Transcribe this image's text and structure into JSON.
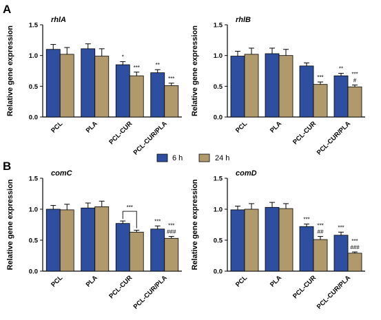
{
  "panel_labels": [
    "A",
    "B"
  ],
  "legend": {
    "items": [
      {
        "label": "6 h",
        "color": "#2e4fa0"
      },
      {
        "label": "24 h",
        "color": "#b09a6c"
      }
    ]
  },
  "colors": {
    "series_6h": "#2e4fa0",
    "series_24h": "#b09a6c",
    "axis": "#000000"
  },
  "chart_data": [
    {
      "type": "bar",
      "panel": "A",
      "title": "rhlA",
      "ylabel": "Relative gene expression",
      "ylim": [
        0,
        1.5
      ],
      "yticks": [
        "0.0",
        "0.5",
        "1.0",
        "1.5"
      ],
      "categories": [
        "PCL",
        "PLA",
        "PCL-CUR",
        "PCL-CUR/PLA"
      ],
      "series": [
        {
          "name": "6 h",
          "values": [
            1.1,
            1.11,
            0.85,
            0.72
          ],
          "errors": [
            0.08,
            0.08,
            0.05,
            0.05
          ],
          "annotations": [
            "",
            "",
            "*",
            "**"
          ]
        },
        {
          "name": "24 h",
          "values": [
            1.02,
            0.99,
            0.67,
            0.51
          ],
          "errors": [
            0.11,
            0.12,
            0.06,
            0.04
          ],
          "annotations": [
            "",
            "",
            "***",
            "***"
          ]
        }
      ]
    },
    {
      "type": "bar",
      "panel": "A",
      "title": "rhlB",
      "ylabel": "Relative gene expression",
      "ylim": [
        0,
        1.5
      ],
      "yticks": [
        "0.0",
        "0.5",
        "1.0",
        "1.5"
      ],
      "categories": [
        "PCL",
        "PLA",
        "PCL-CUR",
        "PCL-CUR/PLA"
      ],
      "series": [
        {
          "name": "6 h",
          "values": [
            0.99,
            1.03,
            0.83,
            0.67
          ],
          "errors": [
            0.08,
            0.09,
            0.05,
            0.04
          ],
          "annotations": [
            "",
            "",
            "",
            "**"
          ]
        },
        {
          "name": "24 h",
          "values": [
            1.02,
            1.0,
            0.53,
            0.49
          ],
          "errors": [
            0.1,
            0.1,
            0.04,
            0.03
          ],
          "annotations": [
            "",
            "",
            "***",
            "***\n#"
          ]
        }
      ]
    },
    {
      "type": "bar",
      "panel": "B",
      "title": "comC",
      "ylabel": "Relative gene expression",
      "ylim": [
        0,
        1.5
      ],
      "yticks": [
        "0.0",
        "0.5",
        "1.0",
        "1.5"
      ],
      "categories": [
        "PCL",
        "PLA",
        "PCL-CUR",
        "PCL-CUR/PLA"
      ],
      "series": [
        {
          "name": "6 h",
          "values": [
            1.0,
            1.02,
            0.77,
            0.68
          ],
          "errors": [
            0.06,
            0.08,
            0.04,
            0.05
          ],
          "annotations": [
            "",
            "",
            "",
            "***"
          ]
        },
        {
          "name": "24 h",
          "values": [
            0.99,
            1.04,
            0.63,
            0.53
          ],
          "errors": [
            0.09,
            0.09,
            0.03,
            0.03
          ],
          "annotations": [
            "",
            "",
            "",
            "***\n###"
          ]
        }
      ],
      "brackets": [
        {
          "from": "PCL-CUR",
          "label": "***"
        }
      ]
    },
    {
      "type": "bar",
      "panel": "B",
      "title": "comD",
      "ylabel": "Relative gene expression",
      "ylim": [
        0,
        1.5
      ],
      "yticks": [
        "0.0",
        "0.5",
        "1.0",
        "1.5"
      ],
      "categories": [
        "PCL",
        "PLA",
        "PCL-CUR",
        "PCL-CUR/PLA"
      ],
      "series": [
        {
          "name": "6 h",
          "values": [
            0.99,
            1.03,
            0.72,
            0.58
          ],
          "errors": [
            0.06,
            0.08,
            0.04,
            0.05
          ],
          "annotations": [
            "",
            "",
            "***",
            "***"
          ]
        },
        {
          "name": "24 h",
          "values": [
            1.0,
            1.01,
            0.51,
            0.29
          ],
          "errors": [
            0.09,
            0.08,
            0.05,
            0.02
          ],
          "annotations": [
            "",
            "",
            "***\n##",
            "***\n###"
          ]
        }
      ]
    }
  ]
}
